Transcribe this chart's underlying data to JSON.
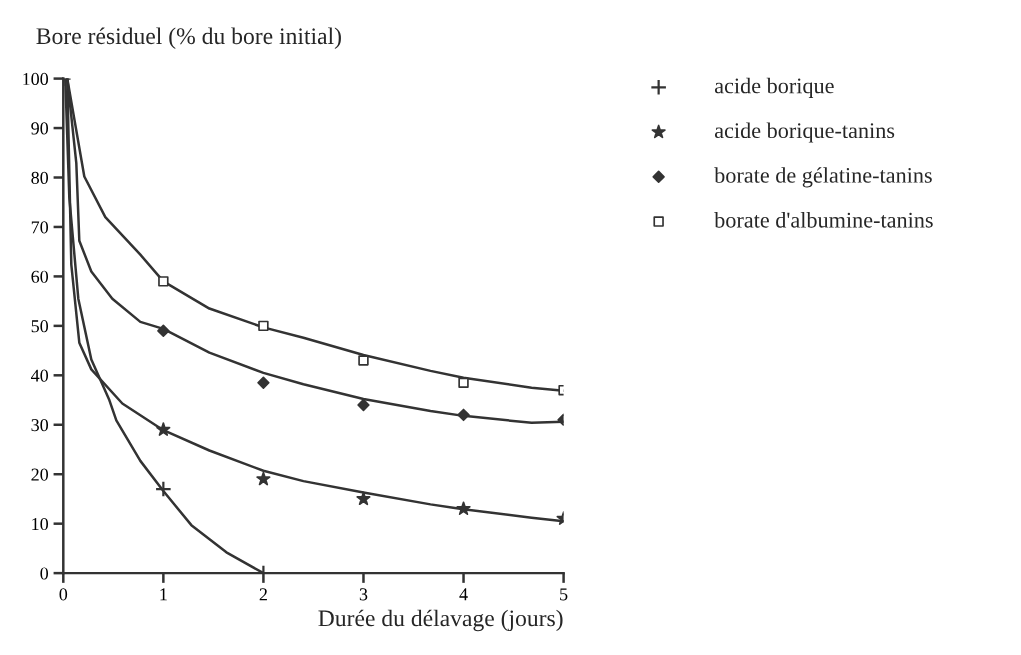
{
  "chart_data": {
    "type": "scatter",
    "ylabel": "Bore résiduel (% du bore initial)",
    "xlabel": "Durée du délavage (jours)",
    "xlim": [
      0,
      5
    ],
    "xticks": [
      0,
      1,
      2,
      3,
      4,
      5
    ],
    "ylim": [
      0,
      100
    ],
    "yticks": [
      0,
      10,
      20,
      30,
      40,
      50,
      60,
      70,
      80,
      90,
      100
    ],
    "grid": false,
    "legend": "top right",
    "series": [
      {
        "name": "acide borique",
        "color": "#333333",
        "marker": "cross",
        "x": [
          0,
          1,
          2
        ],
        "values": [
          100,
          17,
          0
        ]
      },
      {
        "name": "acide borique-tanins",
        "color": "#333333",
        "marker": "star",
        "x": [
          1,
          2,
          3,
          4,
          5
        ],
        "values": [
          29,
          19,
          15,
          13,
          11
        ]
      },
      {
        "name": "borate de gélatine-tanins",
        "color": "#333333",
        "marker": "diamond",
        "x": [
          1,
          2,
          3,
          4,
          5
        ],
        "values": [
          49,
          38.5,
          34,
          32,
          31
        ]
      },
      {
        "name": "borate d'albumine-tanins",
        "color": "#333333",
        "marker": "square",
        "x": [
          1,
          2,
          3,
          4,
          5
        ],
        "values": [
          59,
          50,
          43,
          38.5,
          37
        ]
      },
      {
        "type": "line",
        "color": "#333333",
        "marker": "none",
        "x": [
          0.02,
          0.06,
          0.15,
          0.28,
          0.46,
          0.53,
          0.77,
          1,
          1.28,
          1.63,
          2
        ],
        "values": [
          100,
          76,
          55.5,
          43.2,
          35,
          30.9,
          22.7,
          16.6,
          9.7,
          4.2,
          0
        ]
      },
      {
        "type": "line",
        "color": "#333333",
        "marker": "none",
        "x": [
          0.04,
          0.08,
          0.16,
          0.28,
          0.59,
          1,
          1.46,
          2,
          2.4,
          3,
          3.67,
          4,
          4.68,
          5
        ],
        "values": [
          100,
          62.4,
          46.6,
          41.2,
          34.3,
          28.9,
          24.8,
          20.7,
          18.6,
          16.3,
          13.9,
          12.9,
          11.2,
          10.5
        ]
      },
      {
        "type": "line",
        "color": "#333333",
        "marker": "none",
        "x": [
          0.04,
          0.13,
          0.16,
          0.28,
          0.49,
          0.77,
          1,
          1.46,
          2,
          2.4,
          3,
          3.67,
          4,
          4.68,
          5
        ],
        "values": [
          100,
          82.9,
          67.2,
          61,
          55.5,
          50.8,
          49.4,
          44.6,
          40.5,
          38.2,
          35.2,
          32.8,
          31.8,
          30.4,
          30.6
        ]
      },
      {
        "type": "line",
        "color": "#333333",
        "marker": "none",
        "x": [
          0.04,
          0.21,
          0.42,
          0.77,
          1,
          1.46,
          2,
          2.4,
          3,
          3.67,
          4,
          4.68,
          5
        ],
        "values": [
          100,
          80.2,
          72,
          64.4,
          59,
          53.5,
          49.7,
          47.6,
          44.1,
          40.9,
          39.5,
          37.5,
          36.9
        ]
      }
    ]
  }
}
